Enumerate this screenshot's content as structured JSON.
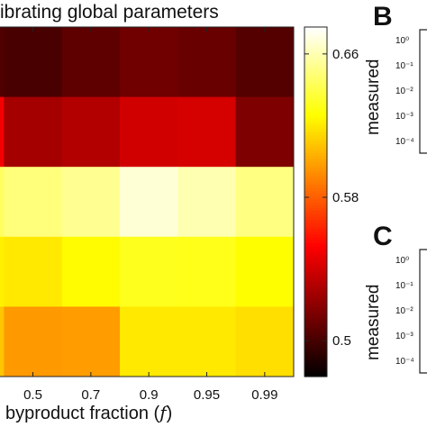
{
  "title": "ibrating global parameters",
  "panel_b": {
    "letter": "B",
    "ylabel": "measured",
    "ticks": [
      "10⁰",
      "10⁻¹",
      "10⁻²",
      "10⁻³",
      "10⁻⁴"
    ]
  },
  "panel_c": {
    "letter": "C",
    "ylabel": "measured",
    "ticks": [
      "10⁰",
      "10⁻¹",
      "10⁻²",
      "10⁻³",
      "10⁻⁴"
    ]
  },
  "xaxis": {
    "label_text": "byproduct fraction (",
    "label_var": "f",
    "label_close": ")"
  },
  "chart_data": {
    "type": "heatmap",
    "x": [
      "",
      "0.5",
      "0.7",
      "0.9",
      "0.95",
      "0.99"
    ],
    "rows": 5,
    "values": [
      [
        0.503,
        0.501,
        0.507,
        0.512,
        0.51,
        0.504
      ],
      [
        0.55,
        0.527,
        0.531,
        0.54,
        0.541,
        0.516
      ],
      [
        0.645,
        0.65,
        0.654,
        0.667,
        0.66,
        0.651
      ],
      [
        0.622,
        0.62,
        0.625,
        0.632,
        0.631,
        0.626
      ],
      [
        0.61,
        0.597,
        0.598,
        0.62,
        0.62,
        0.617
      ]
    ],
    "colorbar": {
      "min": 0.48,
      "max": 0.675,
      "ticks": [
        0.5,
        0.58,
        0.66
      ],
      "tick_labels": [
        "0.5",
        "0.58",
        "0.66"
      ],
      "colormap": "hot"
    },
    "xlabel": "byproduct fraction (f)",
    "ylabel": "",
    "grid": false
  }
}
